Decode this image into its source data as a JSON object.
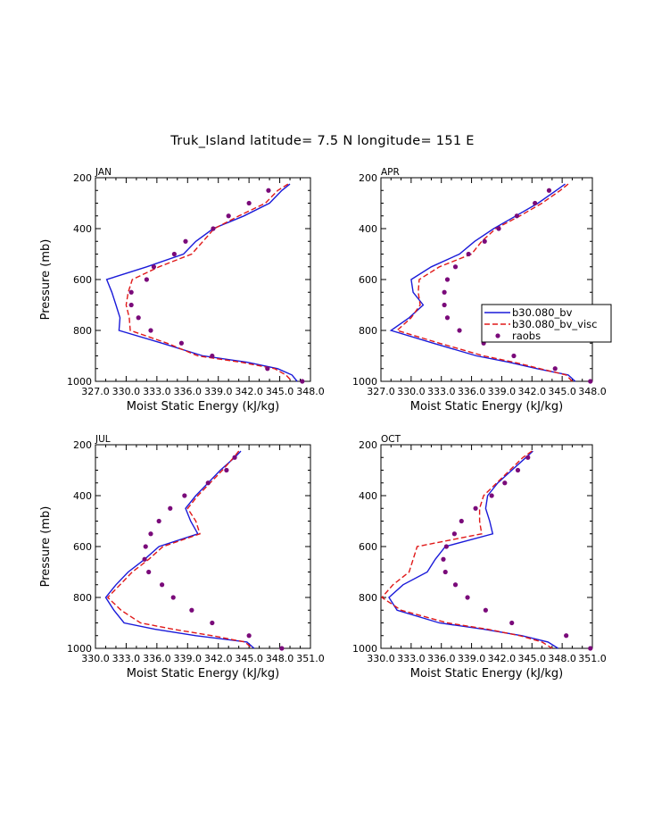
{
  "title": "Truk_Island  latitude= 7.5 N longitude= 151 E",
  "colors": {
    "model1": "#1a1ad9",
    "model2": "#e01919",
    "obs": "#7a0a7a",
    "axis": "#000000"
  },
  "legend": {
    "entries": [
      {
        "label": "b30.080_bv",
        "style": "solid"
      },
      {
        "label": "b30.080_bv_visc",
        "style": "dashed"
      },
      {
        "label": "raobs",
        "style": "dot"
      }
    ]
  },
  "chart_data": [
    {
      "type": "line",
      "panel": "JAN",
      "xlabel": "Moist Static Energy (kJ/kg)",
      "ylabel": "Pressure (mb)",
      "xlim": [
        327.0,
        348.0
      ],
      "ylim": [
        1000,
        200
      ],
      "x_tick_labels": [
        "327.0",
        "330.0",
        "333.0",
        "336.0",
        "339.0",
        "342.0",
        "345.0",
        "348.0"
      ],
      "y_tick_labels": [
        "200",
        "400",
        "600",
        "800",
        "1000"
      ],
      "pressure": [
        225,
        250,
        300,
        350,
        400,
        450,
        500,
        550,
        600,
        650,
        700,
        750,
        800,
        850,
        900,
        925,
        950,
        975,
        1000
      ],
      "series": [
        {
          "name": "b30.080_bv",
          "values": [
            346.0,
            345.2,
            344.0,
            341.5,
            338.5,
            336.8,
            335.6,
            332.0,
            328.1,
            328.6,
            329.0,
            329.4,
            329.3,
            333.5,
            337.5,
            341.8,
            344.8,
            346.2,
            346.7
          ]
        },
        {
          "name": "b30.080_bv_visc",
          "values": [
            345.8,
            344.8,
            343.6,
            341.0,
            338.6,
            337.5,
            336.4,
            333.2,
            330.6,
            330.2,
            330.0,
            330.3,
            330.4,
            334.0,
            337.0,
            341.2,
            344.5,
            345.6,
            346.2
          ]
        },
        {
          "name": "raobs",
          "values": [
            null,
            343.9,
            342.0,
            340.0,
            338.5,
            335.8,
            334.7,
            332.7,
            332.0,
            330.5,
            330.5,
            331.2,
            332.4,
            335.4,
            338.4,
            null,
            343.8,
            null,
            347.2
          ]
        }
      ]
    },
    {
      "type": "line",
      "panel": "APR",
      "xlabel": "Moist Static Energy (kJ/kg)",
      "ylabel": "Pressure (mb)",
      "xlim": [
        327.0,
        348.0
      ],
      "ylim": [
        1000,
        200
      ],
      "x_tick_labels": [
        "327.0",
        "330.0",
        "333.0",
        "336.0",
        "339.0",
        "342.0",
        "345.0",
        "348.0"
      ],
      "y_tick_labels": [
        "200",
        "400",
        "600",
        "800",
        "1000"
      ],
      "pressure": [
        225,
        250,
        300,
        350,
        400,
        450,
        500,
        550,
        600,
        650,
        700,
        750,
        800,
        850,
        900,
        925,
        950,
        975,
        1000
      ],
      "series": [
        {
          "name": "b30.080_bv",
          "values": [
            345.3,
            344.4,
            342.6,
            340.4,
            338.2,
            336.3,
            334.8,
            332.0,
            330.0,
            330.2,
            331.2,
            329.8,
            328.0,
            332.2,
            336.5,
            339.7,
            342.5,
            345.6,
            346.3
          ]
        },
        {
          "name": "b30.080_bv_visc",
          "values": [
            345.6,
            344.8,
            343.0,
            340.8,
            338.4,
            337.0,
            336.0,
            332.8,
            330.8,
            330.7,
            330.9,
            330.0,
            328.6,
            332.8,
            337.2,
            340.2,
            342.8,
            345.4,
            346.0
          ]
        },
        {
          "name": "raobs",
          "values": [
            null,
            343.7,
            342.3,
            340.5,
            338.7,
            337.3,
            335.7,
            334.4,
            333.6,
            333.3,
            333.3,
            333.6,
            334.8,
            337.2,
            340.2,
            null,
            344.3,
            null,
            347.8
          ]
        }
      ]
    },
    {
      "type": "line",
      "panel": "JUL",
      "xlabel": "Moist Static Energy (kJ/kg)",
      "ylabel": "Pressure (mb)",
      "xlim": [
        330.0,
        351.0
      ],
      "ylim": [
        1000,
        200
      ],
      "x_tick_labels": [
        "330.0",
        "333.0",
        "336.0",
        "339.0",
        "342.0",
        "345.0",
        "348.0",
        "351.0"
      ],
      "y_tick_labels": [
        "200",
        "400",
        "600",
        "800",
        "1000"
      ],
      "pressure": [
        225,
        250,
        300,
        350,
        400,
        450,
        500,
        550,
        600,
        650,
        700,
        750,
        800,
        850,
        900,
        925,
        950,
        975,
        1000
      ],
      "series": [
        {
          "name": "b30.080_bv",
          "values": [
            344.2,
            343.6,
            342.2,
            341.0,
            339.8,
            338.8,
            339.3,
            340.0,
            336.2,
            334.8,
            333.2,
            332.0,
            331.0,
            331.8,
            332.8,
            335.8,
            339.8,
            344.8,
            345.5
          ]
        },
        {
          "name": "b30.080_bv_visc",
          "values": [
            344.0,
            343.5,
            342.4,
            341.2,
            340.0,
            339.0,
            339.8,
            340.2,
            336.6,
            335.2,
            333.6,
            332.4,
            331.2,
            332.5,
            334.4,
            337.6,
            341.4,
            344.6,
            345.3
          ]
        },
        {
          "name": "raobs",
          "values": [
            null,
            343.6,
            342.8,
            341.0,
            338.7,
            337.3,
            336.2,
            335.4,
            334.9,
            334.8,
            335.2,
            336.5,
            337.6,
            339.4,
            341.4,
            null,
            345.0,
            null,
            348.2
          ]
        }
      ]
    },
    {
      "type": "line",
      "panel": "OCT",
      "xlabel": "Moist Static Energy (kJ/kg)",
      "ylabel": "Pressure (mb)",
      "xlim": [
        330.0,
        351.0
      ],
      "ylim": [
        1000,
        200
      ],
      "x_tick_labels": [
        "330.0",
        "333.0",
        "336.0",
        "339.0",
        "342.0",
        "345.0",
        "348.0",
        "351.0"
      ],
      "y_tick_labels": [
        "200",
        "400",
        "600",
        "800",
        "1000"
      ],
      "pressure": [
        225,
        250,
        300,
        350,
        400,
        450,
        500,
        550,
        600,
        650,
        700,
        750,
        800,
        850,
        900,
        925,
        950,
        975,
        1000
      ],
      "series": [
        {
          "name": "b30.080_bv",
          "values": [
            345.1,
            344.4,
            343.0,
            341.6,
            340.6,
            340.4,
            340.8,
            341.1,
            336.4,
            335.4,
            334.6,
            332.2,
            330.8,
            331.6,
            335.8,
            340.2,
            344.0,
            346.6,
            347.6
          ]
        },
        {
          "name": "b30.080_bv_visc",
          "values": [
            345.0,
            344.1,
            342.8,
            341.5,
            340.2,
            339.8,
            339.8,
            340.0,
            333.6,
            333.2,
            332.8,
            331.2,
            330.1,
            332.0,
            336.6,
            340.6,
            343.8,
            346.0,
            347.0
          ]
        },
        {
          "name": "raobs",
          "values": [
            null,
            344.6,
            343.6,
            342.3,
            341.0,
            339.4,
            338.0,
            337.3,
            336.5,
            336.2,
            336.4,
            337.4,
            338.6,
            340.4,
            343.0,
            null,
            348.4,
            null,
            350.8
          ]
        }
      ]
    }
  ]
}
